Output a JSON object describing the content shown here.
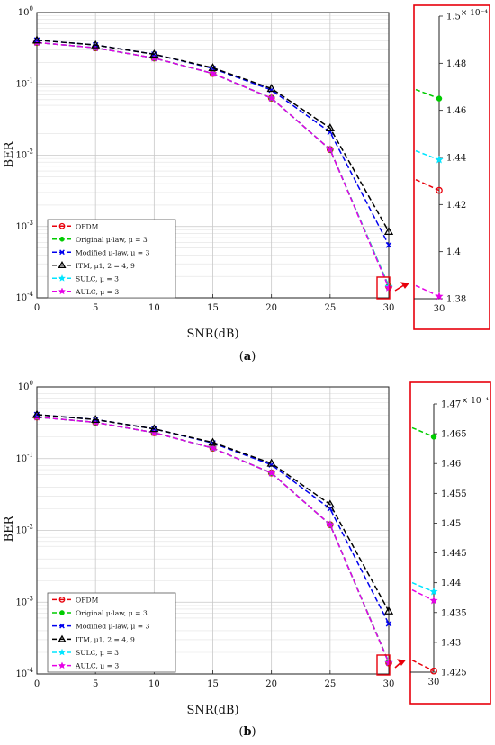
{
  "colors": {
    "OFDM": "#e8000b",
    "Original": "#00cc00",
    "Modified": "#0000ee",
    "ITM": "#000000",
    "SULC": "#00e5ff",
    "AULC": "#e600e6",
    "highlight": "#e8000b"
  },
  "chart_data": [
    {
      "panel_label": "(a)",
      "type": "line",
      "xlabel": "SNR(dB)",
      "ylabel": "BER",
      "x": [
        0,
        5,
        10,
        15,
        20,
        25,
        30
      ],
      "xlim": [
        0,
        30
      ],
      "ylim": [
        0.0001,
        1
      ],
      "yscale": "log",
      "grid": true,
      "legend_position": "bottom-left",
      "series": [
        {
          "key": "OFDM",
          "name": "OFDM",
          "marker": "circle",
          "values": [
            0.38,
            0.32,
            0.23,
            0.14,
            0.063,
            0.012,
            0.0001426
          ]
        },
        {
          "key": "Original",
          "name": "Original μ-law, μ = 3",
          "marker": "dot",
          "values": [
            0.38,
            0.32,
            0.23,
            0.14,
            0.063,
            0.012,
            0.0001465
          ]
        },
        {
          "key": "Modified",
          "name": "Modified μ-law, μ = 3",
          "marker": "x",
          "values": [
            0.41,
            0.35,
            0.26,
            0.165,
            0.082,
            0.021,
            0.00055
          ]
        },
        {
          "key": "ITM",
          "name": "ITM, μ1, 2 = 4, 9",
          "marker": "triangle",
          "values": [
            0.41,
            0.35,
            0.26,
            0.168,
            0.086,
            0.024,
            0.00085
          ]
        },
        {
          "key": "SULC",
          "name": "SULC, μ = 3",
          "marker": "star",
          "values": [
            0.38,
            0.32,
            0.23,
            0.14,
            0.063,
            0.012,
            0.0001439
          ]
        },
        {
          "key": "AULC",
          "name": "AULC, μ = 3",
          "marker": "star",
          "values": [
            0.38,
            0.32,
            0.23,
            0.14,
            0.063,
            0.012,
            0.0001381
          ]
        }
      ],
      "inset": {
        "x_tick": "30",
        "y_ticks": [
          "1.38",
          "1.4",
          "1.42",
          "1.44",
          "1.46",
          "1.48",
          "1.5"
        ],
        "ylim": [
          1.38,
          1.5
        ],
        "exponent": "× 10⁻⁴",
        "points": [
          {
            "key": "Original",
            "value": 1.465
          },
          {
            "key": "SULC",
            "value": 1.439
          },
          {
            "key": "OFDM",
            "value": 1.426
          },
          {
            "key": "AULC",
            "value": 1.381
          }
        ]
      }
    },
    {
      "panel_label": "(b)",
      "type": "line",
      "xlabel": "SNR(dB)",
      "ylabel": "BER",
      "x": [
        0,
        5,
        10,
        15,
        20,
        25,
        30
      ],
      "xlim": [
        0,
        30
      ],
      "ylim": [
        0.0001,
        1
      ],
      "yscale": "log",
      "grid": true,
      "legend_position": "bottom-left",
      "series": [
        {
          "key": "OFDM",
          "name": "OFDM",
          "marker": "circle",
          "values": [
            0.38,
            0.32,
            0.23,
            0.14,
            0.063,
            0.012,
            0.0001425
          ]
        },
        {
          "key": "Original",
          "name": "Original μ-law, μ = 3",
          "marker": "dot",
          "values": [
            0.38,
            0.32,
            0.23,
            0.14,
            0.063,
            0.012,
            0.0001465
          ]
        },
        {
          "key": "Modified",
          "name": "Modified μ-law, μ = 3",
          "marker": "x",
          "values": [
            0.41,
            0.35,
            0.26,
            0.165,
            0.082,
            0.02,
            0.0005
          ]
        },
        {
          "key": "ITM",
          "name": "ITM, μ1, 2 = 4, 9",
          "marker": "triangle",
          "values": [
            0.41,
            0.35,
            0.26,
            0.168,
            0.086,
            0.023,
            0.00075
          ]
        },
        {
          "key": "SULC",
          "name": "SULC, μ = 3",
          "marker": "star",
          "values": [
            0.38,
            0.32,
            0.23,
            0.14,
            0.063,
            0.012,
            0.0001438
          ]
        },
        {
          "key": "AULC",
          "name": "AULC, μ = 3",
          "marker": "star",
          "values": [
            0.38,
            0.32,
            0.23,
            0.14,
            0.063,
            0.012,
            0.0001437
          ]
        }
      ],
      "inset": {
        "x_tick": "30",
        "y_ticks": [
          "1.425",
          "1.43",
          "1.435",
          "1.44",
          "1.445",
          "1.45",
          "1.455",
          "1.46",
          "1.465",
          "1.47"
        ],
        "ylim": [
          1.425,
          1.47
        ],
        "exponent": "× 10⁻⁴",
        "points": [
          {
            "key": "Original",
            "value": 1.4645
          },
          {
            "key": "SULC",
            "value": 1.4385
          },
          {
            "key": "AULC",
            "value": 1.437
          },
          {
            "key": "OFDM",
            "value": 1.4252
          }
        ]
      }
    }
  ]
}
